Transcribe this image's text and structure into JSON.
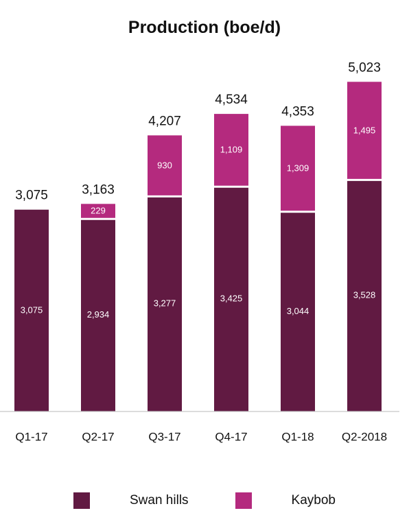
{
  "chart_data": {
    "type": "bar",
    "stacked": true,
    "title": "Production (boe/d)",
    "categories": [
      "Q1-17",
      "Q2-17",
      "Q3-17",
      "Q4-17",
      "Q1-18",
      "Q2-2018"
    ],
    "series": [
      {
        "name": "Swan hills",
        "color": "#611A42",
        "values": [
          3075,
          2934,
          3277,
          3425,
          3044,
          3528
        ]
      },
      {
        "name": "Kaybob",
        "color": "#B42A7E",
        "values": [
          0,
          229,
          930,
          1109,
          1309,
          1495
        ]
      }
    ],
    "segment_labels": [
      [
        "3,075",
        "2,934",
        "3,277",
        "3,425",
        "3,044",
        "3,528"
      ],
      [
        "",
        "229",
        "930",
        "1,109",
        "1,309",
        "1,495"
      ]
    ],
    "totals": [
      3075,
      3163,
      4207,
      4534,
      4353,
      5023
    ],
    "total_labels": [
      "3,075",
      "3,163",
      "4,207",
      "4,534",
      "4,353",
      "5,023"
    ],
    "ylim": [
      0,
      5400
    ],
    "grid": false,
    "legend_position": "bottom"
  }
}
